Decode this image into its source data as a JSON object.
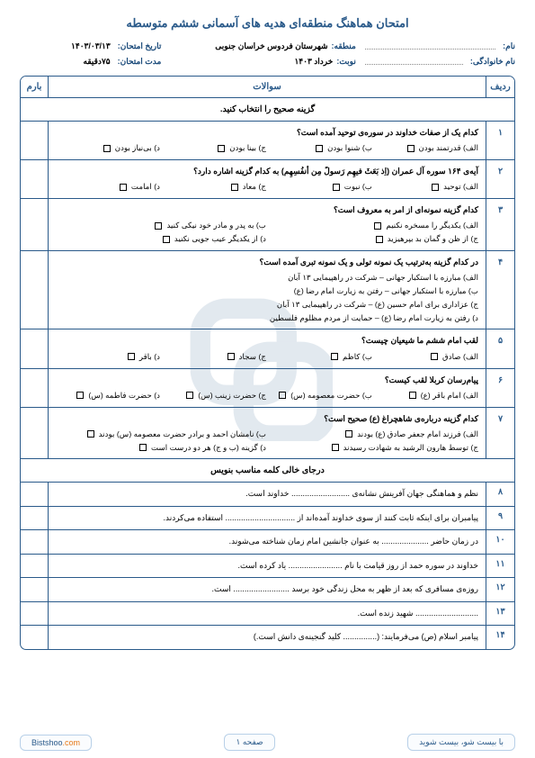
{
  "title": "امتحان هماهنگ منطقه‌ای هدیه های آسمانی ششم متوسطه",
  "header": {
    "name_lbl": "نام:",
    "family_lbl": "نام خانوادگی:",
    "region_lbl": "منطقه:",
    "region_val": "شهرستان فردوس خراسان جنوبی",
    "term_lbl": "نوبت:",
    "term_val": "خرداد ۱۴۰۳",
    "date_lbl": "تاریخ امتحان:",
    "date_val": "۱۴۰۳/۰۳/۱۳",
    "dur_lbl": "مدت امتحان:",
    "dur_val": "۷۵دقیقه"
  },
  "cols": {
    "num": "ردیف",
    "q": "سوالات",
    "score": "بارم"
  },
  "section1": "گزینه صحیح را انتخاب کنید.",
  "mcq": [
    {
      "n": "۱",
      "q": "کدام یک از صفات خداوند در سوره‌ی توحید آمده‌ است؟",
      "cols": 4,
      "opts": [
        "الف) قدرتمند بودن",
        "ب) شنوا بودن",
        "ج) بینا بودن",
        "د) بی‌نیاز بودن"
      ]
    },
    {
      "n": "۲",
      "q": "آیه‌ی ۱۶۴ سوره آل عمران (اِذ بَعَثَ فیهِم رَسولً مِن أنفُسِهِم) به کدام گزینه اشاره دارد؟",
      "cols": 4,
      "opts": [
        "الف) توحید",
        "ب) نبوت",
        "ج) معاد",
        "د) امامت"
      ]
    },
    {
      "n": "۳",
      "q": "کدام گزینه نمونه‌ای از امر به معروف است؟",
      "cols": 2,
      "opts": [
        "الف) یکدیگر را مسخره نکنیم",
        "ب) به پدر و مادر خود نیکی کنید",
        "ج) از ظن و گمان بد بپرهیزید",
        "د) از یکدیگر عیب جویی نکنید"
      ]
    },
    {
      "n": "۴",
      "q": "در کدام گزینه به‌ترتیب یک نمونه تولی و یک نمونه تبری آمده است؟",
      "cols": 1,
      "opts": [
        "الف) مبارزه با استکبار جهانی – شرکت در راهپیمایی ۱۳ آبان",
        "ب) مبارزه با استکبار جهانی – رفتن به زیارت امام رضا (ع)",
        "ج) عزاداری برای امام حسین (ع) – شرکت در راهپیمایی ۱۳ آبان",
        "د) رفتن به زیارت امام رضا (ع) – حمایت از مردم مظلوم فلسطین"
      ]
    },
    {
      "n": "۵",
      "q": "لقب امام ششم ما شیعیان چیست؟",
      "cols": 4,
      "opts": [
        "الف) صادق",
        "ب) کاظم",
        "ج) سجاد",
        "د) باقر"
      ]
    },
    {
      "n": "۶",
      "q": "پیام‌رسان کربلا لقب کیست؟",
      "cols": 4,
      "opts": [
        "الف) امام باقر (ع)",
        "ب) حضرت معصومه (س)",
        "ج) حضرت زینب (س)",
        "د) حضرت فاطمه (س)"
      ]
    },
    {
      "n": "۷",
      "q": "کدام گزینه درباره‌ی شاهچراغ (ع) صحیح است؟",
      "cols": 2,
      "opts": [
        "الف) فرزند امام جعفر صادق (ع) بودند",
        "ب) نامشان احمد و برادر حضرت معصومه (س) بودند",
        "ج) توسط هارون الرشید به شهادت رسیدند",
        "د) گزینه (ب و ج) هر دو درست است"
      ]
    }
  ],
  "section2": "درجای خالی کلمه مناسب بنویس",
  "fill": [
    {
      "n": "۸",
      "t": "نظم و هماهنگی جهان آفرینش نشانه‌ی .......................... خداوند است."
    },
    {
      "n": "۹",
      "t": "پیامبران برای اینکه ثابت کنند از سوی خداوند آمده‌اند از ............................... استفاده می‌کردند."
    },
    {
      "n": "۱۰",
      "t": "در زمان حاضر ..................... به عنوان جانشین امام زمان شناخته می‌شوند."
    },
    {
      "n": "۱۱",
      "t": "خداوند در سوره حمد از روز قیامت با نام ........................ یاد کرده است."
    },
    {
      "n": "۱۲",
      "t": "روزه‌ی مسافری که بعد از ظهر به محل زندگی خود برسد ......................... است."
    },
    {
      "n": "۱۳",
      "t": "............................ شهید زنده است."
    },
    {
      "n": "۱۴",
      "t": "پیامبر اسلام (ص) می‌فرمایند: (............... کلید گنجینه‌ی دانش است.)"
    }
  ],
  "footer": {
    "page": "صفحه ۱",
    "slogan": "با بیست شو، بیست شوید",
    "site_a": "Bistshoo",
    "site_b": ".com"
  }
}
